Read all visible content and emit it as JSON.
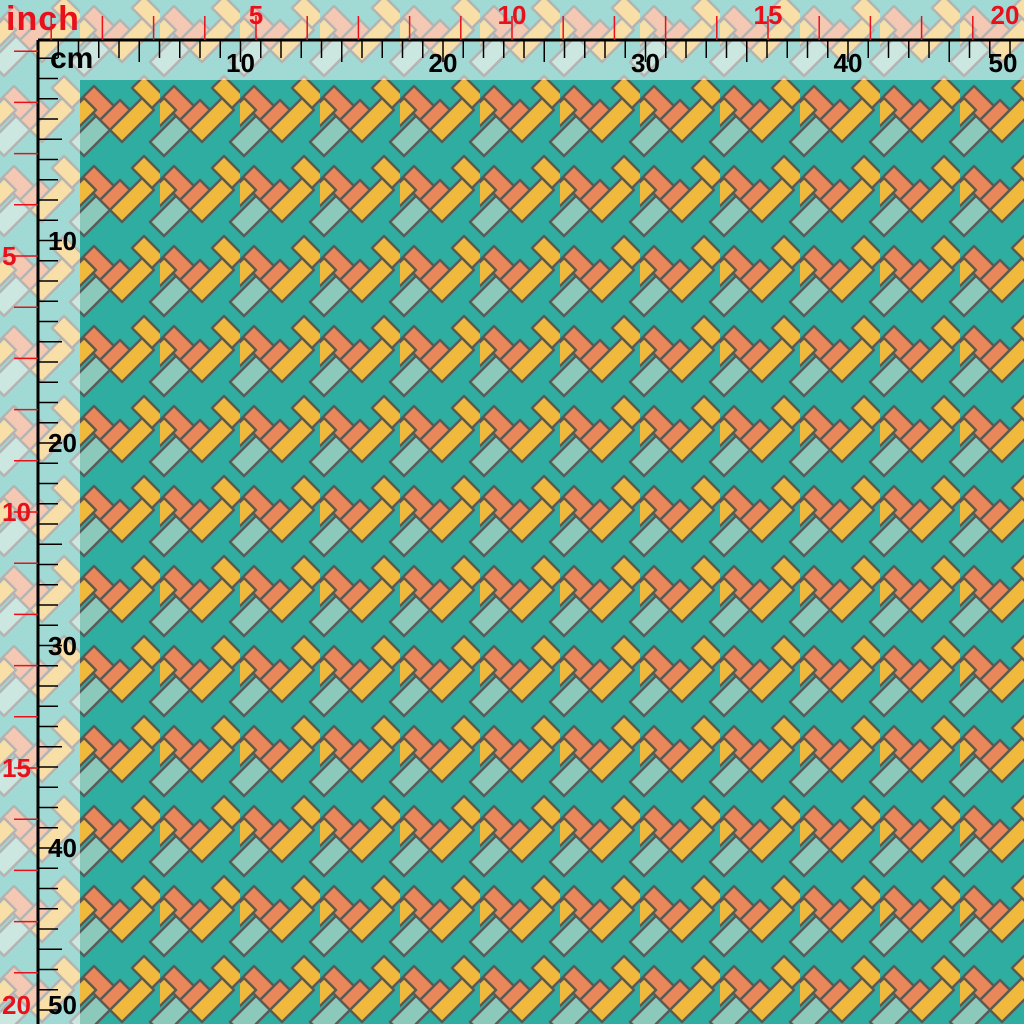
{
  "rulers": {
    "inch_unit": "inch",
    "cm_unit": "cm",
    "inch_top_labels": [
      "5",
      "10",
      "15",
      "20"
    ],
    "cm_top_labels": [
      "10",
      "20",
      "30",
      "40",
      "50"
    ],
    "inch_left_labels": [
      "5",
      "10",
      "15",
      "20"
    ],
    "cm_left_labels": [
      "10",
      "20",
      "30",
      "40",
      "50"
    ],
    "inch_color": "#e8101a",
    "cm_color": "#000000"
  },
  "fabric": {
    "pattern": "interlocking diagonal T-and-L geometric weave",
    "colors": {
      "teal": "#2fada0",
      "light_teal": "#8cc9bb",
      "yellow": "#f0b83c",
      "orange": "#e9865a",
      "outline": "#5a5a55"
    }
  }
}
